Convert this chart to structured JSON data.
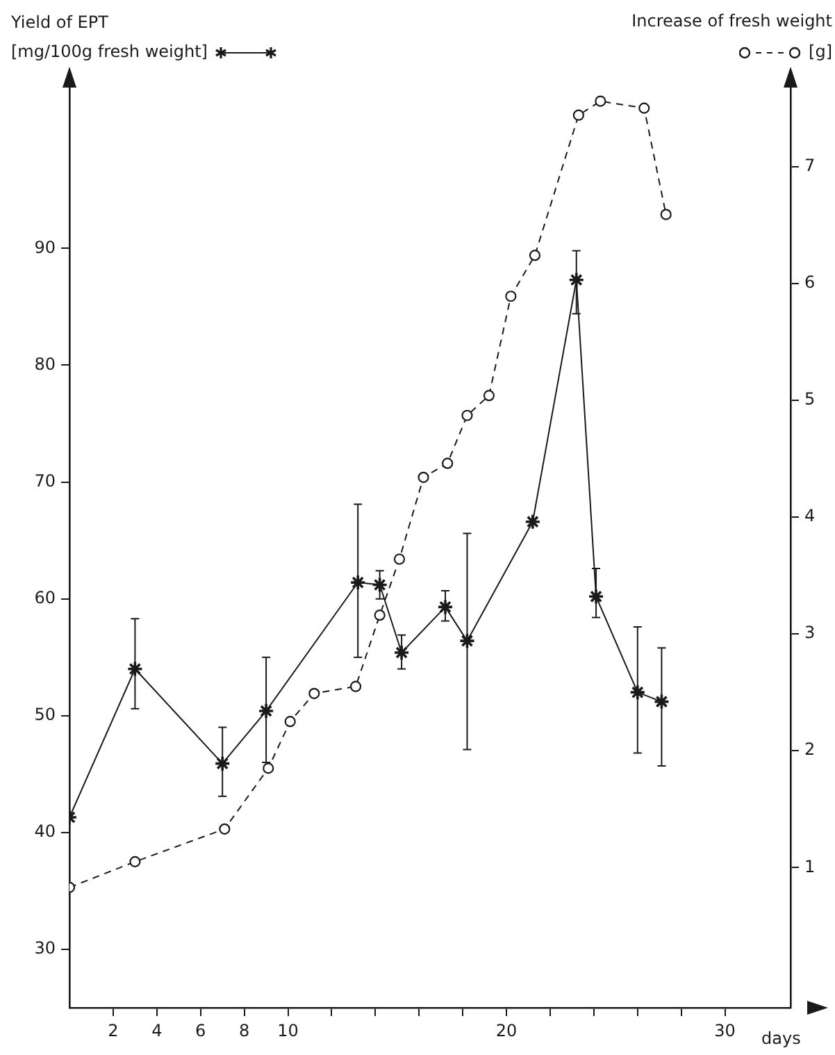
{
  "chart_data": {
    "type": "line",
    "ylabel": "Yield of EPT\n[mg/100g fresh weight]",
    "y2label": "Increase of fresh weight\n[g]",
    "xlabel": "days",
    "xlim": [
      0,
      33
    ],
    "xticks": [
      2,
      4,
      6,
      8,
      10,
      {
        "value": 12,
        "label": null
      },
      {
        "value": 14,
        "label": null
      },
      {
        "value": 16,
        "label": null
      },
      {
        "value": 18,
        "label": null
      },
      20,
      {
        "value": 22,
        "label": null
      },
      {
        "value": 24,
        "label": null
      },
      {
        "value": 26,
        "label": null
      },
      {
        "value": 28,
        "label": null
      },
      30
    ],
    "ylim": [
      25,
      104
    ],
    "yticks": [
      30,
      40,
      50,
      60,
      70,
      80,
      90
    ],
    "y2lim": [
      -0.2,
      7.7
    ],
    "y2ticks": [
      1,
      2,
      3,
      4,
      5,
      6,
      7
    ],
    "grid": false,
    "legend": false,
    "series": [
      {
        "color": "#1a1a1a",
        "marker": "cross",
        "line_style": "solid",
        "x": [
          0,
          3,
          7,
          9,
          13.2,
          14.2,
          15.2,
          17.2,
          18.2,
          21.2,
          23.2,
          24.1,
          26,
          27.1
        ],
        "values": [
          41.3,
          54.0,
          45.9,
          50.4,
          61.4,
          61.2,
          55.4,
          59.3,
          56.4,
          66.6,
          87.3,
          60.2,
          52.0,
          51.2
        ],
        "errors": [
          null,
          [
            50.6,
            58.3
          ],
          [
            43.1,
            49.0
          ],
          [
            46.0,
            55.0
          ],
          [
            55.0,
            68.1
          ],
          [
            60.0,
            62.4
          ],
          [
            54.0,
            56.9
          ],
          [
            58.1,
            60.7
          ],
          [
            47.1,
            65.6
          ],
          null,
          [
            84.4,
            89.8
          ],
          [
            58.4,
            62.6
          ],
          [
            46.8,
            57.6
          ],
          [
            45.7,
            55.8
          ]
        ]
      },
      {
        "color": "#1a1a1a",
        "marker": "circle",
        "line_style": "dashed",
        "axis": "y2",
        "x": [
          0,
          3,
          7.1,
          9.1,
          10.1,
          11.2,
          13.1,
          14.2,
          15.1,
          16.2,
          17.3,
          18.2,
          19.2,
          20.2,
          21.3,
          23.3,
          24.3,
          26.3,
          27.3
        ],
        "values": [
          0.83,
          1.05,
          1.33,
          1.85,
          2.25,
          2.49,
          2.55,
          3.16,
          3.64,
          4.34,
          4.46,
          4.87,
          5.04,
          5.89,
          6.24,
          7.44,
          7.56,
          7.5,
          6.59
        ]
      }
    ]
  }
}
